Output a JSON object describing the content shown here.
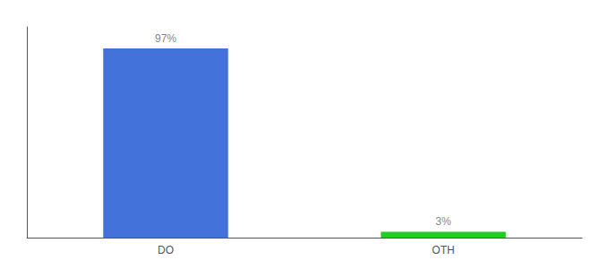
{
  "chart_data": {
    "type": "bar",
    "categories": [
      "DO",
      "OTH"
    ],
    "values": [
      97,
      3
    ],
    "value_labels": [
      "97%",
      "3%"
    ],
    "colors": [
      "#4472db",
      "#22cc22"
    ],
    "ylim": [
      0,
      108
    ],
    "yticks": [],
    "data_labels": true,
    "tick_labels": "x",
    "grid": false
  }
}
